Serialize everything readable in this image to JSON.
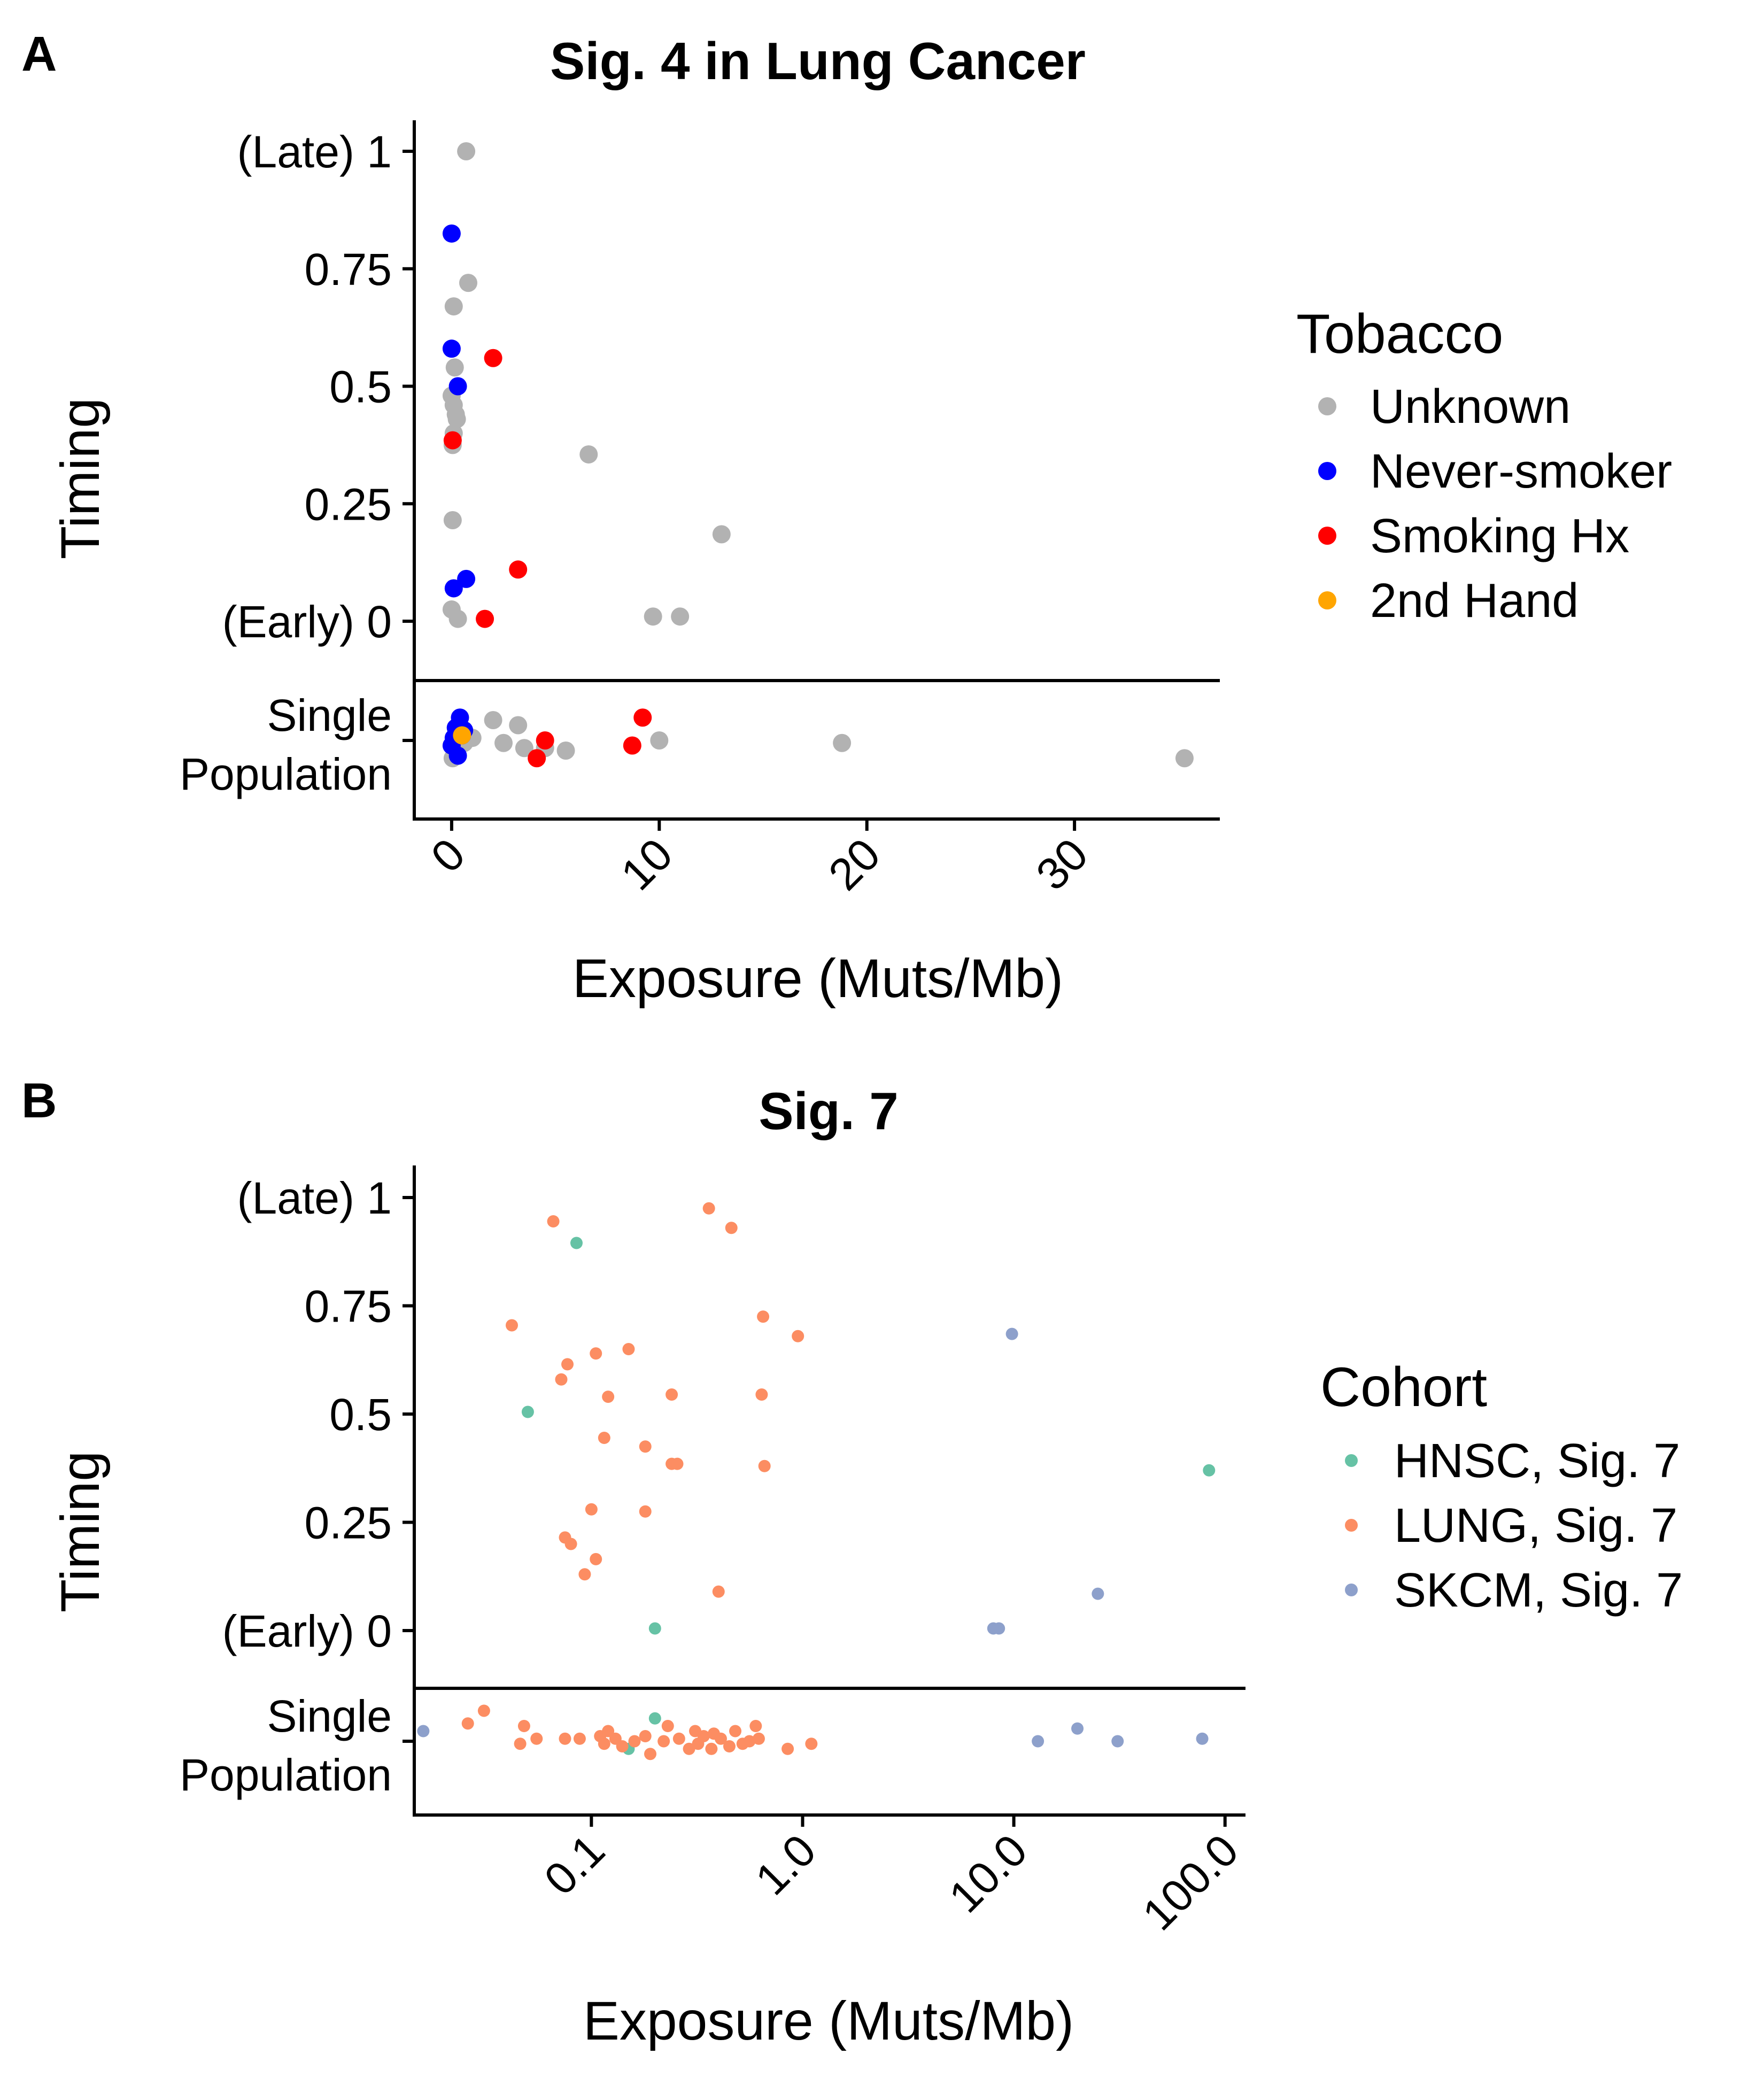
{
  "panels": [
    {
      "label": "A"
    },
    {
      "label": "B"
    }
  ],
  "chart_data": [
    {
      "type": "scatter",
      "title": "Sig. 4 in Lung Cancer",
      "xlabel": "Exposure (Muts/Mb)",
      "ylabel": "Timing",
      "x_scale": "linear",
      "xlim": [
        -1.8,
        37
      ],
      "x_ticks": [
        0,
        10,
        20,
        30
      ],
      "x_tick_labels": [
        "0",
        "10",
        "20",
        "30"
      ],
      "y_ticks": [
        0,
        0.25,
        0.5,
        0.75,
        1
      ],
      "y_tick_labels": [
        "(Early) 0",
        "0.25",
        "0.5",
        "0.75",
        "(Late) 1"
      ],
      "single_population_label": [
        "Single",
        "Population"
      ],
      "legend": {
        "title": "Tobacco",
        "position": "right"
      },
      "grid": false,
      "series": [
        {
          "name": "Unknown",
          "color": "#b2b2b2",
          "points": [
            [
              0.7,
              1.0
            ],
            [
              0.8,
              0.72
            ],
            [
              0.1,
              0.67
            ],
            [
              0.15,
              0.54
            ],
            [
              0.0,
              0.48
            ],
            [
              0.1,
              0.46
            ],
            [
              0.2,
              0.44
            ],
            [
              0.25,
              0.43
            ],
            [
              0.1,
              0.4
            ],
            [
              0.05,
              0.375
            ],
            [
              0.05,
              0.215
            ],
            [
              0.0,
              0.025
            ],
            [
              0.3,
              0.005
            ],
            [
              6.6,
              0.355
            ],
            [
              13.0,
              0.185
            ],
            [
              9.7,
              0.01
            ],
            [
              11.0,
              0.01
            ]
          ],
          "single": [
            [
              0.05,
              0.35
            ],
            [
              0.2,
              0.1
            ],
            [
              0.4,
              -0.15
            ],
            [
              0.6,
              0.05
            ],
            [
              1.0,
              -0.05
            ],
            [
              2.0,
              -0.4
            ],
            [
              2.5,
              0.05
            ],
            [
              3.2,
              -0.3
            ],
            [
              3.5,
              0.15
            ],
            [
              4.5,
              0.15
            ],
            [
              5.5,
              0.2
            ],
            [
              10.0,
              0.0
            ],
            [
              18.8,
              0.05
            ],
            [
              35.3,
              0.35
            ]
          ]
        },
        {
          "name": "Never-smoker",
          "color": "#0000ff",
          "points": [
            [
              0.0,
              0.825
            ],
            [
              0.0,
              0.58
            ],
            [
              0.3,
              0.5
            ],
            [
              0.1,
              0.07
            ],
            [
              0.7,
              0.09
            ]
          ],
          "single": [
            [
              0.0,
              0.1
            ],
            [
              0.3,
              0.3
            ],
            [
              0.5,
              -0.1
            ],
            [
              0.2,
              -0.25
            ],
            [
              0.4,
              -0.45
            ],
            [
              0.1,
              -0.05
            ],
            [
              0.6,
              -0.2
            ]
          ]
        },
        {
          "name": "Smoking Hx",
          "color": "#ff0000",
          "points": [
            [
              2.0,
              0.56
            ],
            [
              0.05,
              0.385
            ],
            [
              3.2,
              0.11
            ],
            [
              1.6,
              0.005
            ]
          ],
          "single": [
            [
              4.1,
              0.35
            ],
            [
              4.5,
              0.0
            ],
            [
              8.7,
              0.1
            ],
            [
              9.2,
              -0.45
            ]
          ]
        },
        {
          "name": "2nd Hand",
          "color": "#ffa500",
          "points": [],
          "single": [
            [
              0.5,
              -0.1
            ]
          ]
        }
      ]
    },
    {
      "type": "scatter",
      "title": "Sig. 7",
      "xlabel": "Exposure (Muts/Mb)",
      "ylabel": "Timing",
      "x_scale": "log10",
      "xlim": [
        0.0145,
        125
      ],
      "x_ticks": [
        0.1,
        1,
        10,
        100
      ],
      "x_tick_labels": [
        "0.1",
        "1.0",
        "10.0",
        "100.0"
      ],
      "y_ticks": [
        0,
        0.25,
        0.5,
        0.75,
        1
      ],
      "y_tick_labels": [
        "(Early) 0",
        "0.25",
        "0.5",
        "0.75",
        "(Late) 1"
      ],
      "single_population_label": [
        "Single",
        "Population"
      ],
      "legend": {
        "title": "Cohort",
        "position": "right"
      },
      "grid": false,
      "series": [
        {
          "name": "HNSC, Sig. 7",
          "color": "#66c2a5",
          "points": [
            [
              0.085,
              0.895
            ],
            [
              0.05,
              0.505
            ],
            [
              0.2,
              0.005
            ],
            [
              84,
              0.37
            ]
          ],
          "single": [
            [
              0.15,
              0.15
            ],
            [
              0.2,
              -0.45
            ]
          ]
        },
        {
          "name": "LUNG, Sig. 7",
          "color": "#fc8d62",
          "points": [
            [
              0.066,
              0.945
            ],
            [
              0.36,
              0.975
            ],
            [
              0.46,
              0.93
            ],
            [
              0.042,
              0.705
            ],
            [
              0.65,
              0.725
            ],
            [
              0.95,
              0.68
            ],
            [
              0.105,
              0.64
            ],
            [
              0.15,
              0.65
            ],
            [
              0.077,
              0.615
            ],
            [
              0.072,
              0.58
            ],
            [
              0.12,
              0.54
            ],
            [
              0.24,
              0.545
            ],
            [
              0.64,
              0.545
            ],
            [
              0.115,
              0.445
            ],
            [
              0.18,
              0.425
            ],
            [
              0.24,
              0.385
            ],
            [
              0.255,
              0.385
            ],
            [
              0.66,
              0.38
            ],
            [
              0.1,
              0.28
            ],
            [
              0.18,
              0.275
            ],
            [
              0.075,
              0.215
            ],
            [
              0.08,
              0.2
            ],
            [
              0.105,
              0.165
            ],
            [
              0.093,
              0.13
            ],
            [
              0.4,
              0.09
            ]
          ],
          "single": [
            [
              0.026,
              -0.35
            ],
            [
              0.031,
              -0.6
            ],
            [
              0.046,
              0.05
            ],
            [
              0.048,
              -0.3
            ],
            [
              0.055,
              -0.05
            ],
            [
              0.075,
              -0.05
            ],
            [
              0.088,
              -0.05
            ],
            [
              0.11,
              -0.1
            ],
            [
              0.115,
              0.05
            ],
            [
              0.12,
              -0.2
            ],
            [
              0.13,
              -0.05
            ],
            [
              0.14,
              0.1
            ],
            [
              0.16,
              0.0
            ],
            [
              0.18,
              -0.1
            ],
            [
              0.19,
              0.25
            ],
            [
              0.22,
              0.0
            ],
            [
              0.23,
              -0.3
            ],
            [
              0.26,
              -0.05
            ],
            [
              0.29,
              0.15
            ],
            [
              0.31,
              -0.2
            ],
            [
              0.32,
              0.05
            ],
            [
              0.34,
              -0.1
            ],
            [
              0.37,
              0.15
            ],
            [
              0.38,
              -0.15
            ],
            [
              0.41,
              -0.05
            ],
            [
              0.45,
              0.1
            ],
            [
              0.48,
              -0.2
            ],
            [
              0.52,
              0.05
            ],
            [
              0.56,
              0.0
            ],
            [
              0.6,
              -0.3
            ],
            [
              0.62,
              -0.05
            ],
            [
              0.85,
              0.15
            ],
            [
              1.1,
              0.05
            ]
          ]
        },
        {
          "name": "SKCM, Sig. 7",
          "color": "#8da0cb",
          "points": [
            [
              9.8,
              0.685
            ],
            [
              8.0,
              0.005
            ],
            [
              8.5,
              0.005
            ],
            [
              25.0,
              0.085
            ]
          ],
          "single": [
            [
              0.016,
              -0.2
            ],
            [
              13.0,
              0.0
            ],
            [
              20.0,
              -0.25
            ],
            [
              31.0,
              0.0
            ],
            [
              78.0,
              -0.05
            ]
          ]
        }
      ]
    }
  ]
}
